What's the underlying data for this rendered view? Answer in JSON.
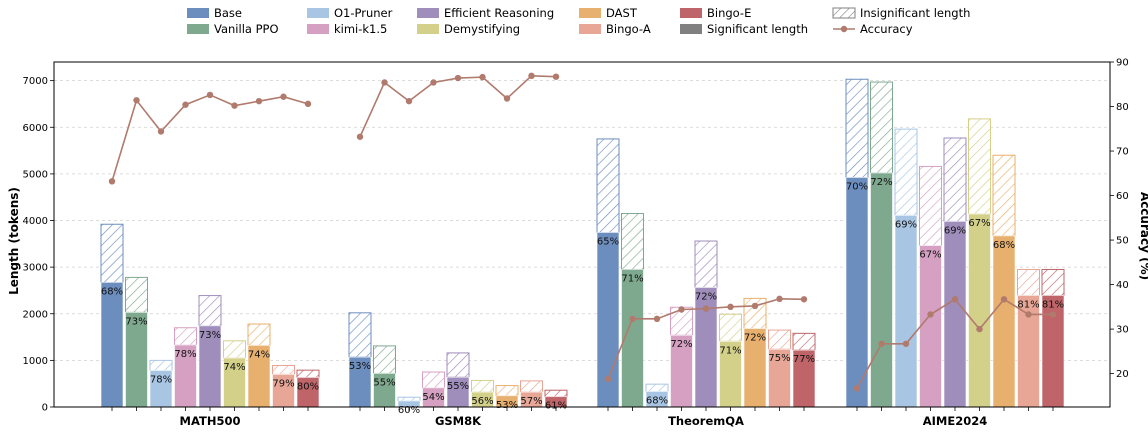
{
  "chart_data": {
    "type": "bar",
    "ylabel": "Length (tokens)",
    "y2label": "Accuracy (%)",
    "ylim": [
      0,
      7400
    ],
    "y2lim": [
      12.5,
      90
    ],
    "yticks": [
      "0",
      "1000",
      "2000",
      "3000",
      "4000",
      "5000",
      "6000",
      "7000"
    ],
    "y2ticks": [
      "20",
      "30",
      "40",
      "50",
      "60",
      "70",
      "80",
      "90"
    ],
    "grid": "horizontal dashed",
    "legend_position": "top-center",
    "categories": [
      "MATH500",
      "GSM8K",
      "TheoremQA",
      "AIME2024"
    ],
    "series": [
      {
        "name": "Base",
        "color": "#6c8ebf",
        "total": [
          3920,
          2020,
          5750,
          7030
        ],
        "significant": [
          2670,
          1070,
          3740,
          4920
        ],
        "label": [
          "68%",
          "53%",
          "65%",
          "70%"
        ]
      },
      {
        "name": "Vanilla PPO",
        "color": "#7fa98f",
        "total": [
          2780,
          1310,
          4150,
          6970
        ],
        "significant": [
          2030,
          720,
          2950,
          5020
        ],
        "label": [
          "73%",
          "55%",
          "71%",
          "72%"
        ]
      },
      {
        "name": "O1-Pruner",
        "color": "#a8c6e4",
        "total": [
          1000,
          210,
          490,
          5960
        ],
        "significant": [
          780,
          130,
          330,
          4110
        ],
        "label": [
          "78%",
          "60%",
          "68%",
          "69%"
        ]
      },
      {
        "name": "kimi-k1.5",
        "color": "#d5a0c2",
        "total": [
          1700,
          750,
          2140,
          5160
        ],
        "significant": [
          1330,
          410,
          1540,
          3460
        ],
        "label": [
          "78%",
          "54%",
          "72%",
          "67%"
        ]
      },
      {
        "name": "Efficient Reasoning",
        "color": "#9f8dbb",
        "total": [
          2390,
          1160,
          3560,
          5770
        ],
        "significant": [
          1740,
          640,
          2560,
          3980
        ],
        "label": [
          "73%",
          "55%",
          "72%",
          "69%"
        ]
      },
      {
        "name": "Demystifying",
        "color": "#d3d08a",
        "total": [
          1420,
          570,
          1990,
          6180
        ],
        "significant": [
          1050,
          320,
          1410,
          4140
        ],
        "label": [
          "74%",
          "56%",
          "71%",
          "67%"
        ]
      },
      {
        "name": "DAST",
        "color": "#e8b06e",
        "total": [
          1780,
          460,
          2330,
          5400
        ],
        "significant": [
          1320,
          240,
          1680,
          3670
        ],
        "label": [
          "74%",
          "53%",
          "72%",
          "68%"
        ]
      },
      {
        "name": "Bingo-A",
        "color": "#e8a697",
        "total": [
          890,
          560,
          1650,
          2950
        ],
        "significant": [
          700,
          320,
          1240,
          2390
        ],
        "label": [
          "79%",
          "57%",
          "75%",
          "81%"
        ]
      },
      {
        "name": "Bingo-E",
        "color": "#bf6468",
        "total": [
          790,
          360,
          1580,
          2950
        ],
        "significant": [
          630,
          220,
          1220,
          2390
        ],
        "label": [
          "80%",
          "61%",
          "77%",
          "81%"
        ]
      }
    ],
    "accuracy": {
      "name": "Accuracy",
      "color": "#b07a6c",
      "values": [
        [
          63.2,
          81.4,
          74.4,
          80.4,
          82.6,
          80.2,
          81.2,
          82.2,
          80.6
        ],
        [
          73.2,
          85.4,
          81.2,
          85.4,
          86.4,
          86.6,
          81.8,
          86.9,
          86.7
        ],
        [
          18.8,
          32.3,
          32.3,
          34.4,
          34.6,
          35.0,
          35.2,
          36.8,
          36.7
        ],
        [
          16.7,
          26.7,
          26.7,
          33.3,
          36.7,
          30.0,
          36.7,
          33.3,
          33.3
        ]
      ]
    },
    "legend": [
      {
        "label": "Base",
        "kind": "bar",
        "series": 0
      },
      {
        "label": "Vanilla PPO",
        "kind": "bar",
        "series": 1
      },
      {
        "label": "O1-Pruner",
        "kind": "bar",
        "series": 2
      },
      {
        "label": "kimi-k1.5",
        "kind": "bar",
        "series": 3
      },
      {
        "label": "Efficient Reasoning",
        "kind": "bar",
        "series": 4
      },
      {
        "label": "Demystifying",
        "kind": "bar",
        "series": 5
      },
      {
        "label": "DAST",
        "kind": "bar",
        "series": 6
      },
      {
        "label": "Bingo-A",
        "kind": "bar",
        "series": 7
      },
      {
        "label": "Bingo-E",
        "kind": "bar",
        "series": 8
      },
      {
        "label": "Significant length",
        "kind": "solid",
        "color": "#808080"
      },
      {
        "label": "Insignificant length",
        "kind": "hatch",
        "color": "#808080"
      },
      {
        "label": "Accuracy",
        "kind": "line"
      }
    ]
  }
}
